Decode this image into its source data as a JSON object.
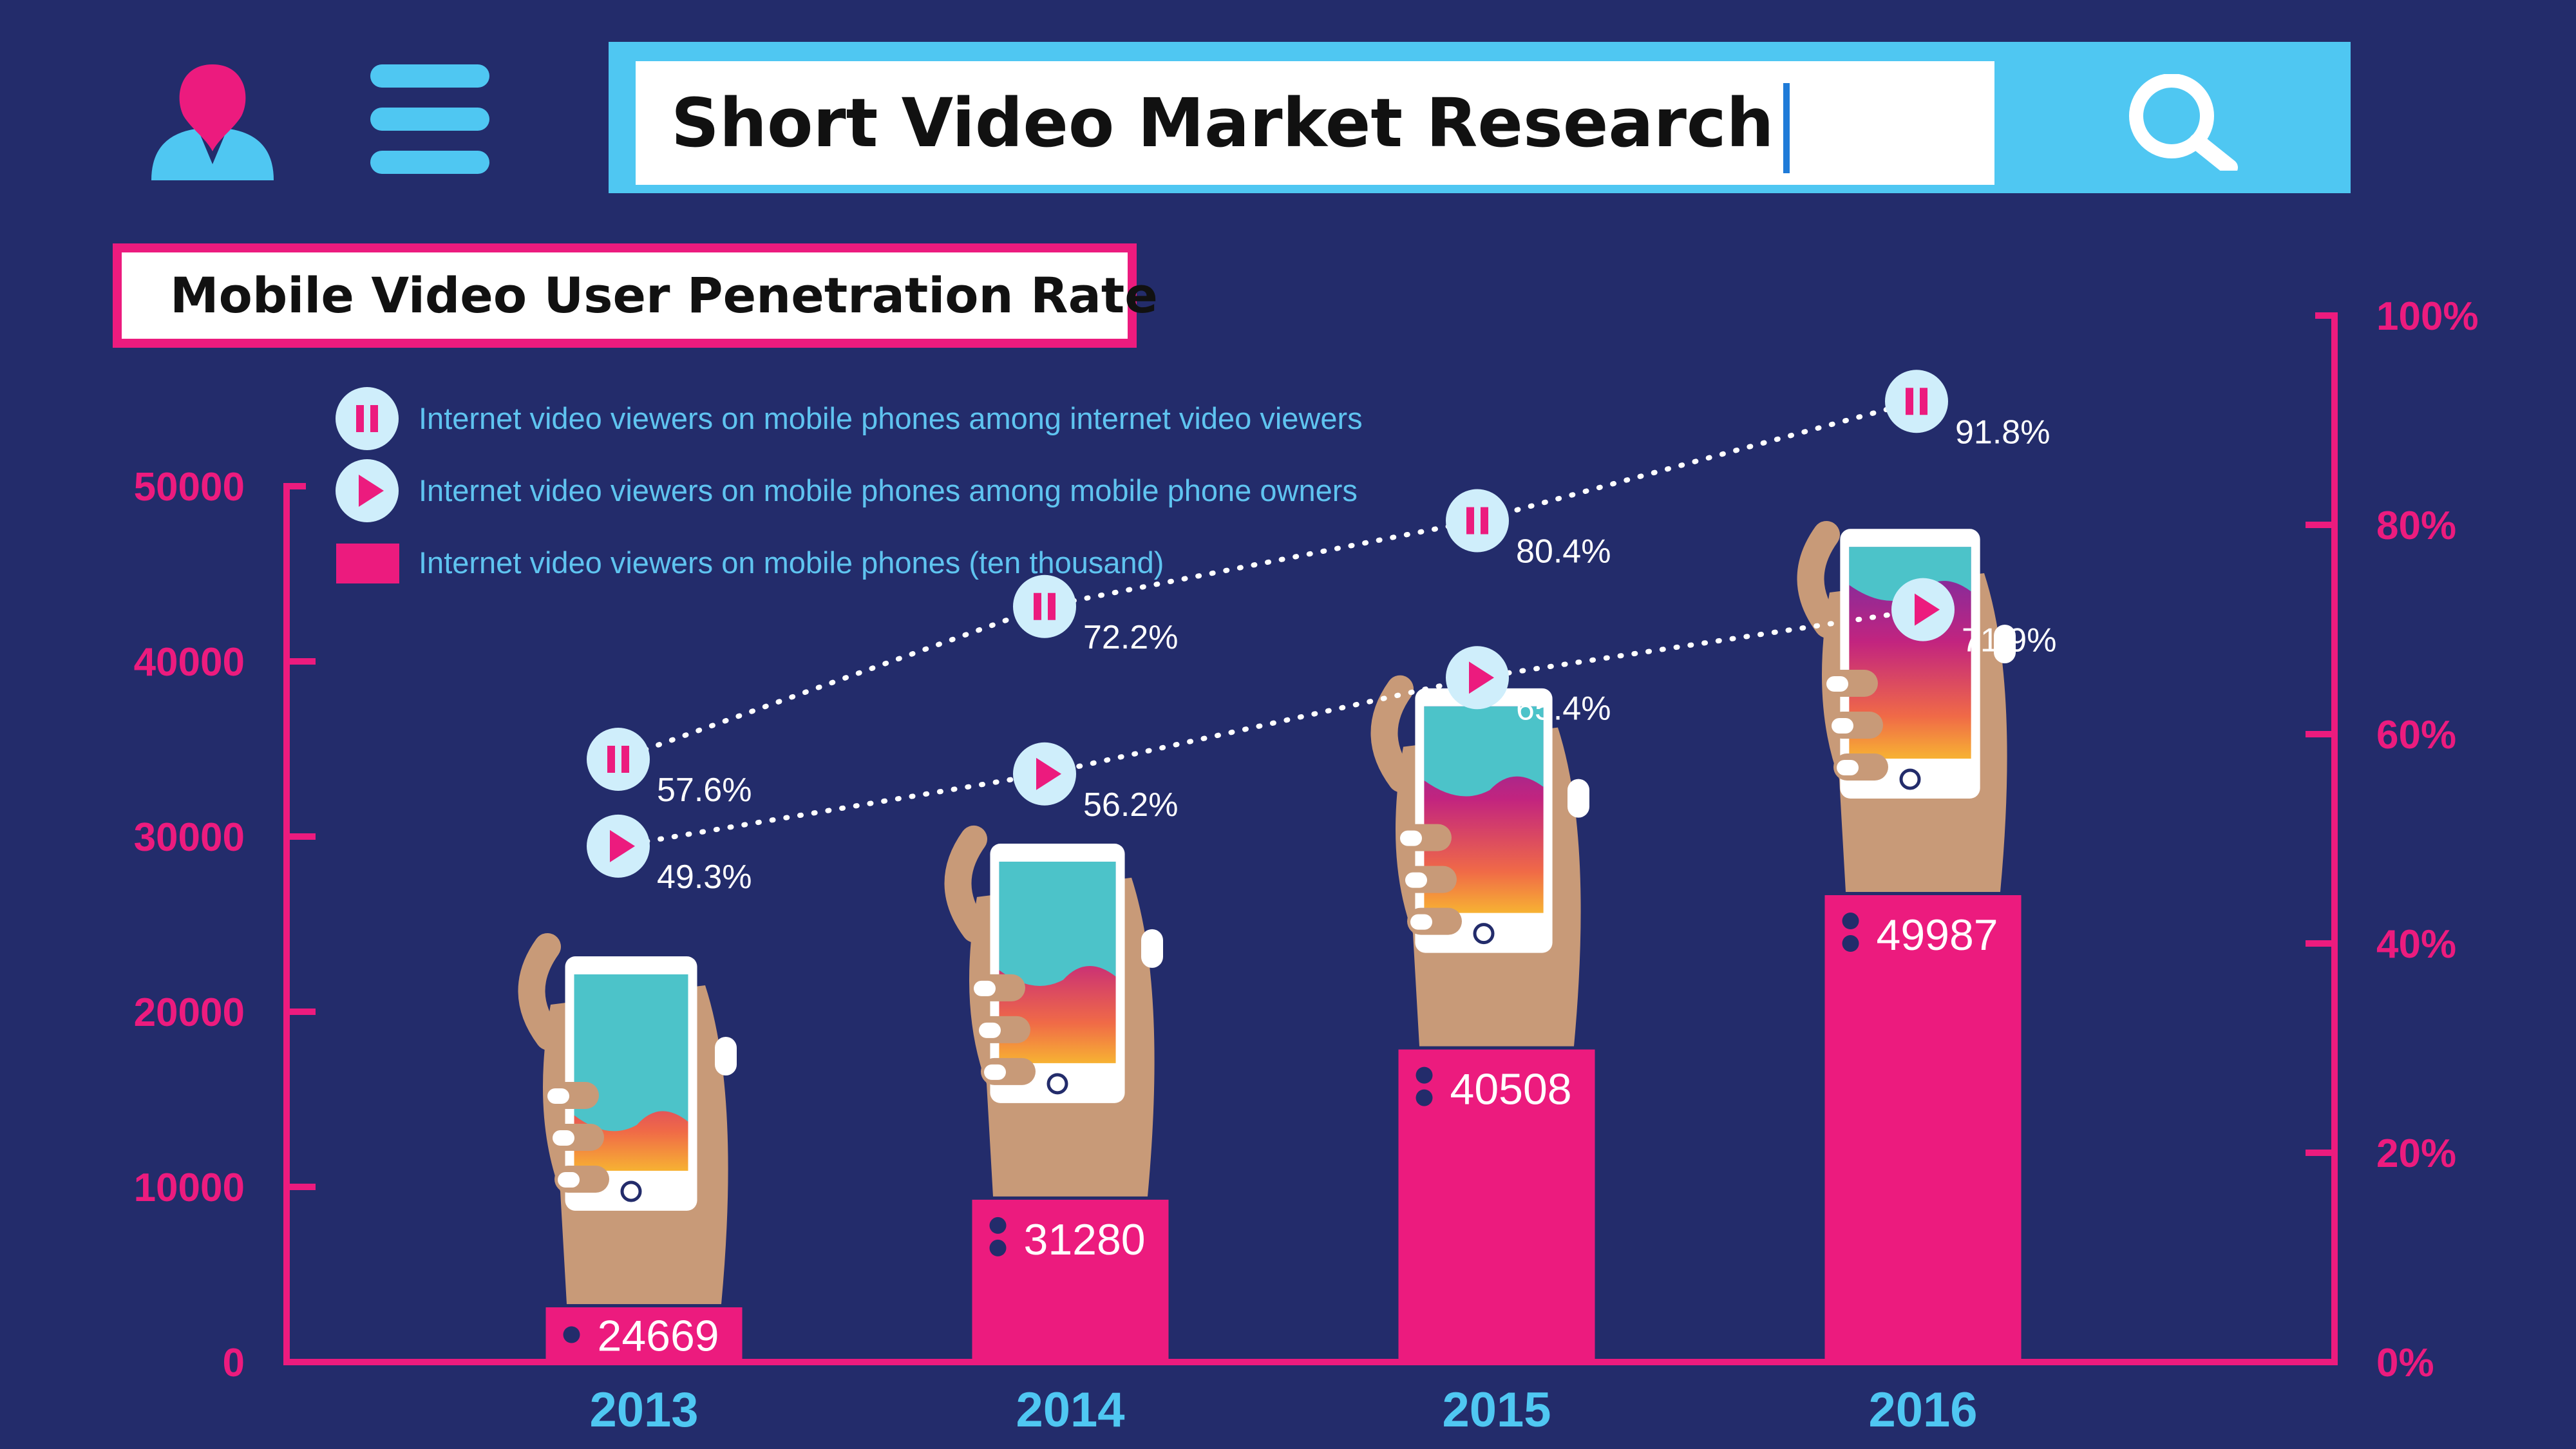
{
  "search": {
    "value": "Short Video Market Research"
  },
  "title": "Mobile Video User Penetration Rate",
  "legend": [
    {
      "label": "Internet video viewers on mobile phones among internet video viewers",
      "icon": "pause-icon"
    },
    {
      "label": "Internet video viewers on mobile phones among mobile phone owners",
      "icon": "play-icon"
    },
    {
      "label": "Internet video viewers on mobile phones (ten thousand)",
      "icon": "bar-swatch"
    }
  ],
  "colors": {
    "background": "#232c6b",
    "accent": "#ec1b7e",
    "blue": "#4fc7f2",
    "light": "#cfeefb",
    "teal": "#4cc3c9"
  },
  "chart_data": {
    "type": "bar+line",
    "categories": [
      "2013",
      "2014",
      "2015",
      "2016"
    ],
    "left_axis": {
      "ticks": [
        "0",
        "10000",
        "20000",
        "30000",
        "40000",
        "50000"
      ],
      "ylim": [
        0,
        50000
      ]
    },
    "right_axis": {
      "ticks": [
        "0%",
        "20%",
        "40%",
        "60%",
        "80%",
        "100%"
      ],
      "ylim": [
        0,
        100
      ]
    },
    "bars": {
      "values": [
        24669,
        31280,
        40508,
        49987
      ],
      "labels": [
        "24669",
        "31280",
        "40508",
        "49987"
      ]
    },
    "series": [
      {
        "values": [
          57.6,
          72.2,
          80.4,
          91.8
        ],
        "labels": [
          "57.6%",
          "72.2%",
          "80.4%",
          "91.8%"
        ],
        "marker": "pause-icon"
      },
      {
        "values": [
          49.3,
          56.2,
          65.4,
          71.9
        ],
        "labels": [
          "49.3%",
          "56.2%",
          "65.4%",
          "71.9%"
        ],
        "marker": "play-icon"
      }
    ]
  }
}
